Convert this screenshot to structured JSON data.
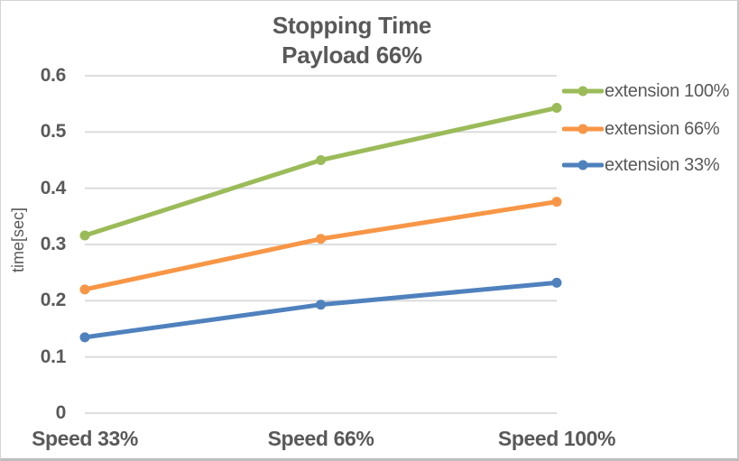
{
  "chart_data": {
    "type": "line",
    "title": "Stopping Time",
    "subtitle": "Payload 66%",
    "ylabel": "time[sec]",
    "xlabel": "",
    "categories": [
      "Speed 33%",
      "Speed 66%",
      "Speed 100%"
    ],
    "series": [
      {
        "name": "extension 100%",
        "color": "#9BBB59",
        "values": [
          0.316,
          0.45,
          0.543
        ]
      },
      {
        "name": "extension 66%",
        "color": "#F79646",
        "values": [
          0.22,
          0.31,
          0.376
        ]
      },
      {
        "name": "extension 33%",
        "color": "#4F81BD",
        "values": [
          0.135,
          0.193,
          0.232
        ]
      }
    ],
    "ylim": [
      0,
      0.6
    ],
    "y_ticks": [
      "0",
      "0.1",
      "0.2",
      "0.3",
      "0.4",
      "0.5",
      "0.6"
    ],
    "grid": true,
    "grid_color": "#D9D9D9",
    "text_color": "#595959",
    "legend_position": "right",
    "marker": "circle"
  }
}
